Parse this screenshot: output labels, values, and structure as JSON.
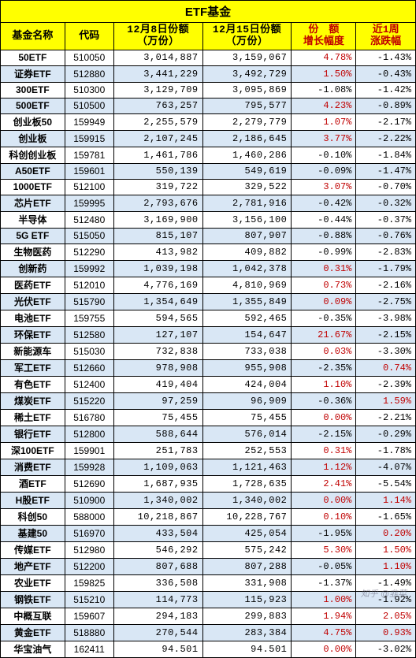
{
  "title": "ETF基金",
  "headers": {
    "name": "基金名称",
    "code": "代码",
    "v1": "12月8日份额\n（万份）",
    "v2": "12月15日份额\n（万份）",
    "chg": "份　额\n增长幅度",
    "ret": "近1周\n涨跌幅"
  },
  "colors": {
    "header_bg": "#ffff00",
    "odd_bg": "#d9e7f5",
    "even_bg": "#ffffff",
    "pos_text": "#c00000",
    "neg_text": "#000000",
    "border": "#000000"
  },
  "fonts": {
    "title_size": 15,
    "header_size": 13,
    "body_size": 12,
    "num_family": "Courier New"
  },
  "watermark": "知乎 @韭菜",
  "rows": [
    {
      "name": "50ETF",
      "code": "510050",
      "v1": "3,014,887",
      "v2": "3,159,067",
      "chg": "4.78%",
      "chg_s": "pos",
      "ret": "-1.43%",
      "ret_s": "neg"
    },
    {
      "name": "证券ETF",
      "code": "512880",
      "v1": "3,441,229",
      "v2": "3,492,729",
      "chg": "1.50%",
      "chg_s": "pos",
      "ret": "-0.43%",
      "ret_s": "neg"
    },
    {
      "name": "300ETF",
      "code": "510300",
      "v1": "3,129,709",
      "v2": "3,095,869",
      "chg": "-1.08%",
      "chg_s": "neg",
      "ret": "-1.42%",
      "ret_s": "neg"
    },
    {
      "name": "500ETF",
      "code": "510500",
      "v1": "763,257",
      "v2": "795,577",
      "chg": "4.23%",
      "chg_s": "pos",
      "ret": "-0.89%",
      "ret_s": "neg"
    },
    {
      "name": "创业板50",
      "code": "159949",
      "v1": "2,255,579",
      "v2": "2,279,779",
      "chg": "1.07%",
      "chg_s": "pos",
      "ret": "-2.17%",
      "ret_s": "neg"
    },
    {
      "name": "创业板",
      "code": "159915",
      "v1": "2,107,245",
      "v2": "2,186,645",
      "chg": "3.77%",
      "chg_s": "pos",
      "ret": "-2.22%",
      "ret_s": "neg"
    },
    {
      "name": "科创创业板",
      "code": "159781",
      "v1": "1,461,786",
      "v2": "1,460,286",
      "chg": "-0.10%",
      "chg_s": "neg",
      "ret": "-1.84%",
      "ret_s": "neg"
    },
    {
      "name": "A50ETF",
      "code": "159601",
      "v1": "550,139",
      "v2": "549,619",
      "chg": "-0.09%",
      "chg_s": "neg",
      "ret": "-1.47%",
      "ret_s": "neg"
    },
    {
      "name": "1000ETF",
      "code": "512100",
      "v1": "319,722",
      "v2": "329,522",
      "chg": "3.07%",
      "chg_s": "pos",
      "ret": "-0.70%",
      "ret_s": "neg"
    },
    {
      "name": "芯片ETF",
      "code": "159995",
      "v1": "2,793,676",
      "v2": "2,781,916",
      "chg": "-0.42%",
      "chg_s": "neg",
      "ret": "-0.32%",
      "ret_s": "neg"
    },
    {
      "name": "半导体",
      "code": "512480",
      "v1": "3,169,900",
      "v2": "3,156,100",
      "chg": "-0.44%",
      "chg_s": "neg",
      "ret": "-0.37%",
      "ret_s": "neg"
    },
    {
      "name": "5G ETF",
      "code": "515050",
      "v1": "815,107",
      "v2": "807,907",
      "chg": "-0.88%",
      "chg_s": "neg",
      "ret": "-0.76%",
      "ret_s": "neg"
    },
    {
      "name": "生物医药",
      "code": "512290",
      "v1": "413,982",
      "v2": "409,882",
      "chg": "-0.99%",
      "chg_s": "neg",
      "ret": "-2.83%",
      "ret_s": "neg"
    },
    {
      "name": "创新药",
      "code": "159992",
      "v1": "1,039,198",
      "v2": "1,042,378",
      "chg": "0.31%",
      "chg_s": "pos",
      "ret": "-1.79%",
      "ret_s": "neg"
    },
    {
      "name": "医药ETF",
      "code": "512010",
      "v1": "4,776,169",
      "v2": "4,810,969",
      "chg": "0.73%",
      "chg_s": "pos",
      "ret": "-2.16%",
      "ret_s": "neg"
    },
    {
      "name": "光伏ETF",
      "code": "515790",
      "v1": "1,354,649",
      "v2": "1,355,849",
      "chg": "0.09%",
      "chg_s": "pos",
      "ret": "-2.75%",
      "ret_s": "neg"
    },
    {
      "name": "电池ETF",
      "code": "159755",
      "v1": "594,565",
      "v2": "592,465",
      "chg": "-0.35%",
      "chg_s": "neg",
      "ret": "-3.98%",
      "ret_s": "neg"
    },
    {
      "name": "环保ETF",
      "code": "512580",
      "v1": "127,107",
      "v2": "154,647",
      "chg": "21.67%",
      "chg_s": "pos",
      "ret": "-2.15%",
      "ret_s": "neg"
    },
    {
      "name": "新能源车",
      "code": "515030",
      "v1": "732,838",
      "v2": "733,038",
      "chg": "0.03%",
      "chg_s": "pos",
      "ret": "-3.30%",
      "ret_s": "neg"
    },
    {
      "name": "军工ETF",
      "code": "512660",
      "v1": "978,908",
      "v2": "955,908",
      "chg": "-2.35%",
      "chg_s": "neg",
      "ret": "0.74%",
      "ret_s": "pos"
    },
    {
      "name": "有色ETF",
      "code": "512400",
      "v1": "419,404",
      "v2": "424,004",
      "chg": "1.10%",
      "chg_s": "pos",
      "ret": "-2.39%",
      "ret_s": "neg"
    },
    {
      "name": "煤炭ETF",
      "code": "515220",
      "v1": "97,259",
      "v2": "96,909",
      "chg": "-0.36%",
      "chg_s": "neg",
      "ret": "1.59%",
      "ret_s": "pos"
    },
    {
      "name": "稀土ETF",
      "code": "516780",
      "v1": "75,455",
      "v2": "75,455",
      "chg": "0.00%",
      "chg_s": "pos",
      "ret": "-2.21%",
      "ret_s": "neg"
    },
    {
      "name": "银行ETF",
      "code": "512800",
      "v1": "588,644",
      "v2": "576,014",
      "chg": "-2.15%",
      "chg_s": "neg",
      "ret": "-0.29%",
      "ret_s": "neg"
    },
    {
      "name": "深100ETF",
      "code": "159901",
      "v1": "251,783",
      "v2": "252,553",
      "chg": "0.31%",
      "chg_s": "pos",
      "ret": "-1.78%",
      "ret_s": "neg"
    },
    {
      "name": "消费ETF",
      "code": "159928",
      "v1": "1,109,063",
      "v2": "1,121,463",
      "chg": "1.12%",
      "chg_s": "pos",
      "ret": "-4.07%",
      "ret_s": "neg"
    },
    {
      "name": "酒ETF",
      "code": "512690",
      "v1": "1,687,935",
      "v2": "1,728,635",
      "chg": "2.41%",
      "chg_s": "pos",
      "ret": "-5.54%",
      "ret_s": "neg"
    },
    {
      "name": "H股ETF",
      "code": "510900",
      "v1": "1,340,002",
      "v2": "1,340,002",
      "chg": "0.00%",
      "chg_s": "pos",
      "ret": "1.14%",
      "ret_s": "pos"
    },
    {
      "name": "科创50",
      "code": "588000",
      "v1": "10,218,867",
      "v2": "10,228,767",
      "chg": "0.10%",
      "chg_s": "pos",
      "ret": "-1.65%",
      "ret_s": "neg"
    },
    {
      "name": "基建50",
      "code": "516970",
      "v1": "433,504",
      "v2": "425,054",
      "chg": "-1.95%",
      "chg_s": "neg",
      "ret": "0.20%",
      "ret_s": "pos"
    },
    {
      "name": "传媒ETF",
      "code": "512980",
      "v1": "546,292",
      "v2": "575,242",
      "chg": "5.30%",
      "chg_s": "pos",
      "ret": "1.50%",
      "ret_s": "pos"
    },
    {
      "name": "地产ETF",
      "code": "512200",
      "v1": "807,688",
      "v2": "807,288",
      "chg": "-0.05%",
      "chg_s": "neg",
      "ret": "1.10%",
      "ret_s": "pos"
    },
    {
      "name": "农业ETF",
      "code": "159825",
      "v1": "336,508",
      "v2": "331,908",
      "chg": "-1.37%",
      "chg_s": "neg",
      "ret": "-1.49%",
      "ret_s": "neg"
    },
    {
      "name": "钢铁ETF",
      "code": "515210",
      "v1": "114,773",
      "v2": "115,923",
      "chg": "1.00%",
      "chg_s": "pos",
      "ret": "-1.92%",
      "ret_s": "neg"
    },
    {
      "name": "中概互联",
      "code": "159607",
      "v1": "294,183",
      "v2": "299,883",
      "chg": "1.94%",
      "chg_s": "pos",
      "ret": "2.05%",
      "ret_s": "pos"
    },
    {
      "name": "黄金ETF",
      "code": "518880",
      "v1": "270,544",
      "v2": "283,384",
      "chg": "4.75%",
      "chg_s": "pos",
      "ret": "0.93%",
      "ret_s": "pos"
    },
    {
      "name": "华宝油气",
      "code": "162411",
      "v1": "94.501",
      "v2": "94.501",
      "chg": "0.00%",
      "chg_s": "pos",
      "ret": "-3.02%",
      "ret_s": "neg"
    }
  ]
}
